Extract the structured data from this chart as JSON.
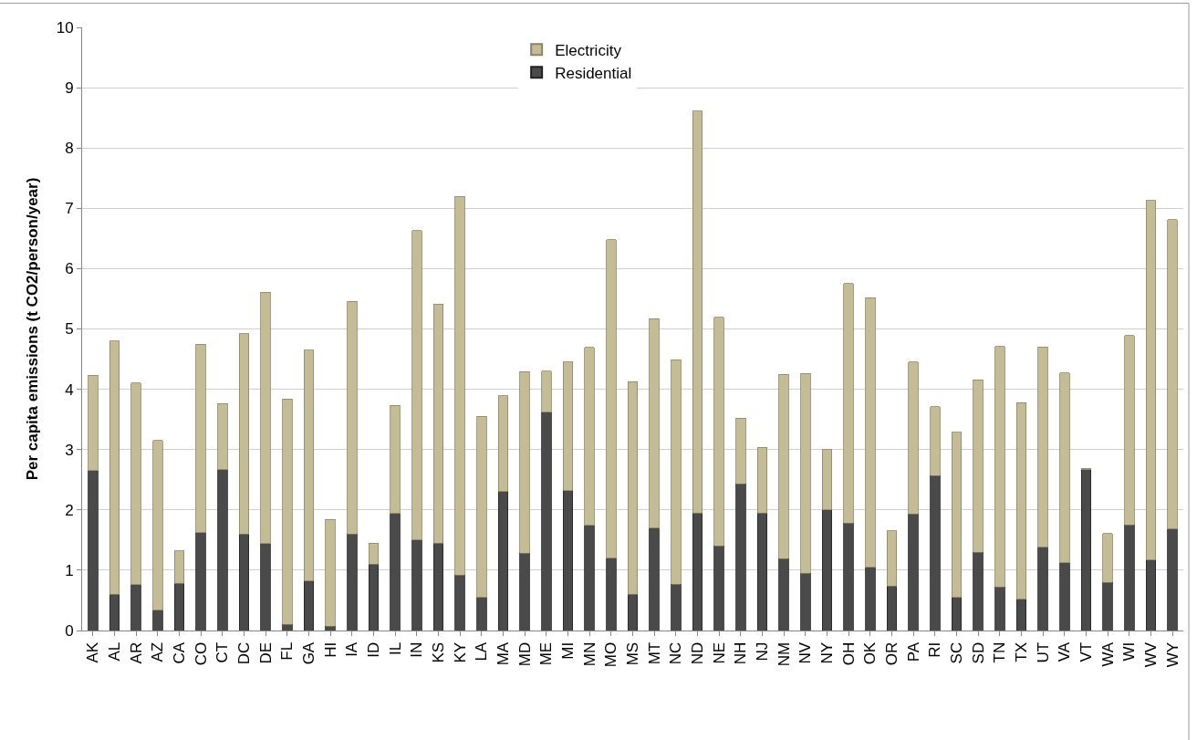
{
  "chart_data": {
    "type": "bar",
    "stacked": true,
    "ylabel": "Per capita emissions (t CO2/person/year)",
    "categories": [
      "AK",
      "AL",
      "AR",
      "AZ",
      "CA",
      "CO",
      "CT",
      "DC",
      "DE",
      "FL",
      "GA",
      "HI",
      "IA",
      "ID",
      "IL",
      "IN",
      "KS",
      "KY",
      "LA",
      "MA",
      "MD",
      "ME",
      "MI",
      "MN",
      "MO",
      "MS",
      "MT",
      "NC",
      "ND",
      "NE",
      "NH",
      "NJ",
      "NM",
      "NV",
      "NY",
      "OH",
      "OK",
      "OR",
      "PA",
      "RI",
      "SC",
      "SD",
      "TN",
      "TX",
      "UT",
      "VA",
      "VT",
      "WA",
      "WI",
      "WV",
      "WY"
    ],
    "series": [
      {
        "name": "Residential",
        "color": "#4a4a4a",
        "values": [
          2.65,
          0.6,
          0.76,
          0.34,
          0.78,
          1.62,
          2.67,
          1.6,
          1.44,
          0.1,
          0.82,
          0.07,
          1.6,
          1.1,
          1.94,
          1.5,
          1.45,
          0.92,
          0.55,
          2.3,
          1.28,
          3.62,
          2.32,
          1.74,
          1.2,
          0.6,
          1.7,
          0.77,
          1.95,
          1.4,
          2.43,
          1.95,
          1.19,
          0.95,
          2.0,
          1.78,
          1.05,
          0.74,
          1.93,
          2.57,
          0.55,
          1.3,
          0.72,
          0.52,
          1.38,
          1.12,
          2.67,
          0.8,
          1.75,
          1.17,
          1.68
        ]
      },
      {
        "name": "Electricity",
        "color": "#c4bc96",
        "values": [
          1.58,
          4.2,
          3.34,
          2.81,
          0.54,
          3.13,
          1.09,
          3.32,
          4.17,
          3.74,
          3.83,
          1.77,
          3.86,
          0.35,
          1.79,
          5.13,
          3.96,
          6.28,
          3.0,
          1.59,
          3.01,
          0.68,
          2.13,
          2.95,
          5.28,
          3.53,
          3.47,
          3.72,
          6.66,
          3.79,
          1.09,
          1.09,
          3.06,
          3.31,
          1.0,
          3.97,
          4.47,
          0.91,
          2.52,
          1.14,
          2.74,
          2.86,
          3.99,
          3.26,
          3.32,
          3.15,
          0.02,
          0.81,
          3.14,
          5.96,
          5.13
        ]
      }
    ],
    "ylim": [
      0,
      10
    ],
    "yticks": [
      0,
      1,
      2,
      3,
      4,
      5,
      6,
      7,
      8,
      9,
      10
    ],
    "grid": "y",
    "legend": "top"
  }
}
